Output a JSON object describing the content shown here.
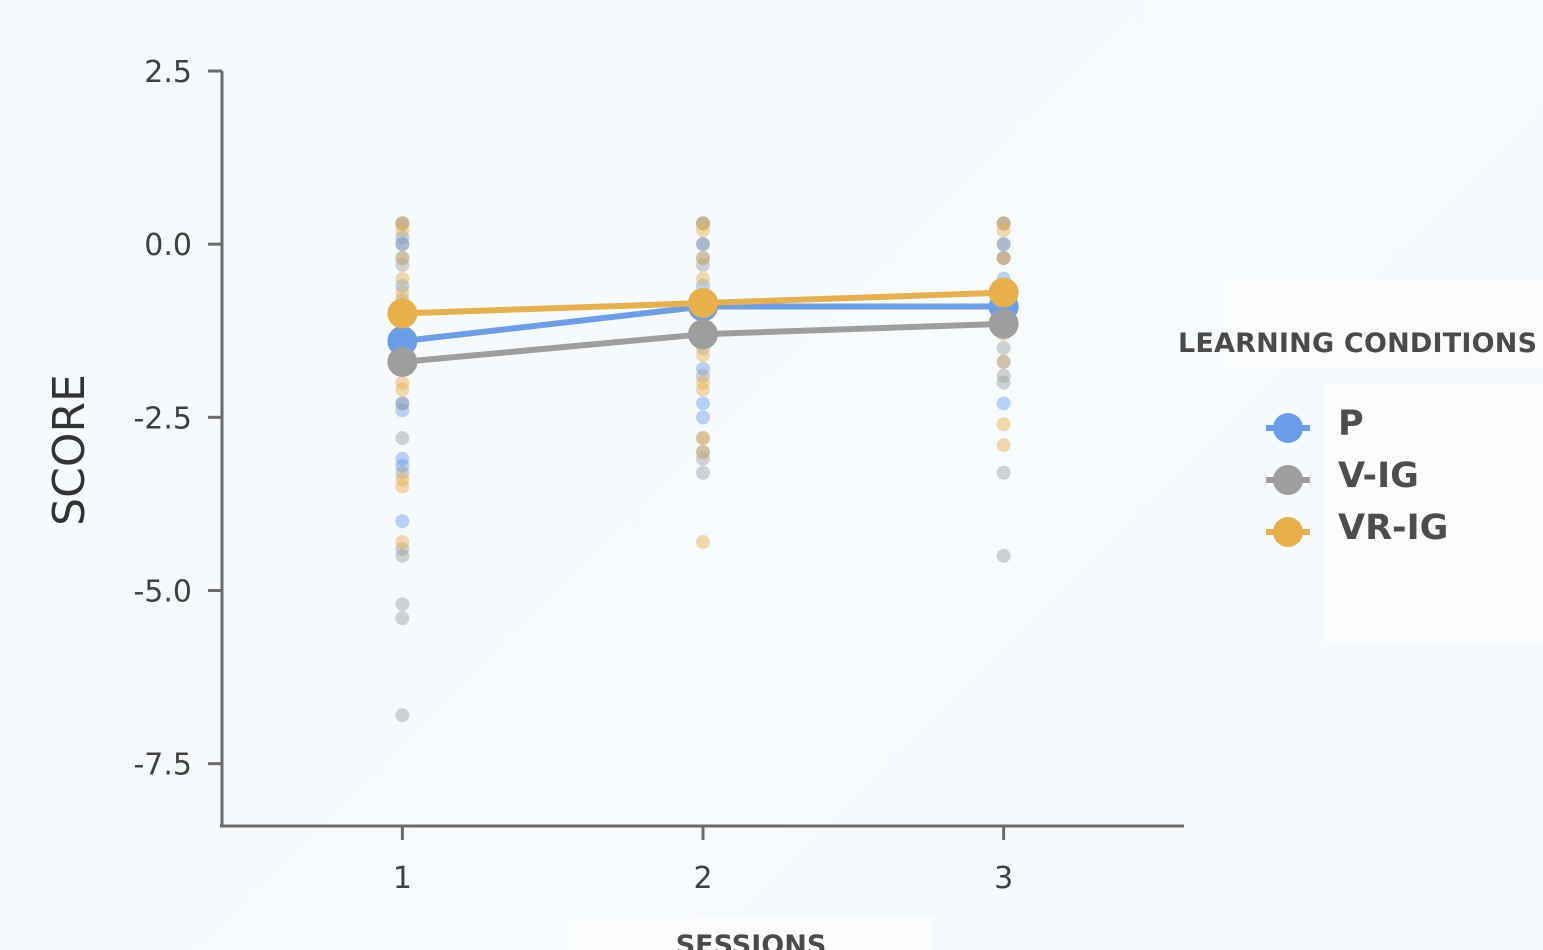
{
  "chart_data": {
    "type": "scatter",
    "xlabel": "SESSIONS",
    "ylabel": "SCORE",
    "x_ticks": [
      "1",
      "2",
      "3"
    ],
    "y_ticks": [
      "2.5",
      "0.0",
      "-2.5",
      "-5.0",
      "-7.5"
    ],
    "y_tick_values": [
      2.5,
      0.0,
      -2.5,
      -5.0,
      -7.5
    ],
    "xlim": [
      0.4,
      3.6
    ],
    "ylim": [
      -8.4,
      2.5
    ],
    "grid": false,
    "legend_position": "right",
    "legend_title": "LEARNING CONDITIONS",
    "series": [
      {
        "name": "P",
        "color": "#6b9ee8",
        "x": [
          1,
          2,
          3
        ],
        "mean": [
          -1.4,
          -0.9,
          -0.9
        ],
        "points": [
          [
            0.3,
            0.1,
            0.0,
            -0.2,
            -0.6,
            -1.0,
            -1.3,
            -1.7,
            -2.3,
            -2.4,
            -3.1,
            -3.2,
            -4.0
          ],
          [
            0.3,
            0.0,
            -0.2,
            -0.6,
            -0.9,
            -1.3,
            -1.8,
            -2.3,
            -2.5,
            -3.0
          ],
          [
            0.3,
            0.0,
            -0.2,
            -0.5,
            -0.8,
            -1.2,
            -1.7,
            -2.3
          ]
        ]
      },
      {
        "name": "V-IG",
        "color": "#9e9e9e",
        "x": [
          1,
          2,
          3
        ],
        "mean": [
          -1.7,
          -1.3,
          -1.15
        ],
        "points": [
          [
            0.3,
            0.0,
            -0.3,
            -0.8,
            -1.2,
            -1.8,
            -2.3,
            -2.8,
            -3.3,
            -4.4,
            -4.5,
            -5.2,
            -5.4,
            -6.8
          ],
          [
            0.3,
            0.0,
            -0.3,
            -0.9,
            -1.5,
            -1.9,
            -2.8,
            -3.1,
            -3.3
          ],
          [
            0.3,
            0.0,
            -0.2,
            -1.0,
            -1.5,
            -1.9,
            -2.0,
            -3.3,
            -4.5
          ]
        ]
      },
      {
        "name": "VR-IG",
        "color": "#e8b04a",
        "x": [
          1,
          2,
          3
        ],
        "mean": [
          -1.0,
          -0.85,
          -0.7
        ],
        "points": [
          [
            0.3,
            0.2,
            -0.2,
            -0.5,
            -0.7,
            -1.2,
            -1.5,
            -2.0,
            -2.1,
            -3.4,
            -3.5,
            -4.3
          ],
          [
            0.3,
            0.2,
            -0.2,
            -0.5,
            -1.0,
            -1.3,
            -1.6,
            -2.0,
            -2.1,
            -2.8,
            -3.0,
            -4.3
          ],
          [
            0.3,
            0.2,
            -0.2,
            -0.7,
            -1.0,
            -1.3,
            -1.7,
            -2.6,
            -2.9
          ]
        ]
      }
    ]
  }
}
